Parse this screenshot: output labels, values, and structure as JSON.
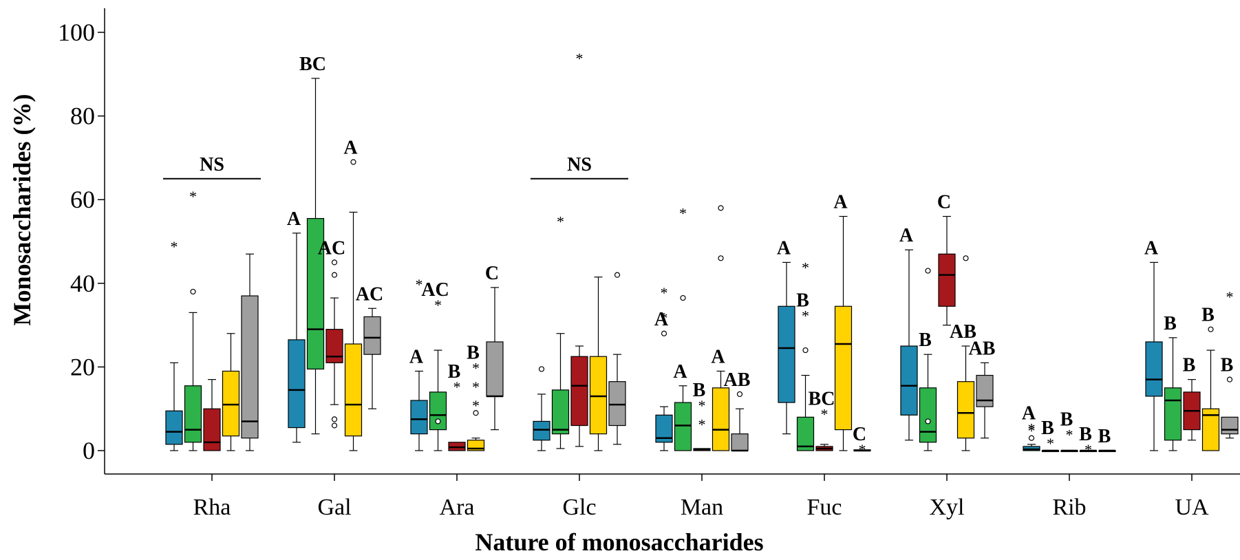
{
  "chart_data": {
    "type": "boxplot",
    "xlabel": "Nature of monosaccharides",
    "ylabel": "Monosaccharides (%)",
    "ylim": [
      -5,
      105
    ],
    "yticks": [
      0,
      20,
      40,
      60,
      80,
      100
    ],
    "categories": [
      "Rha",
      "Gal",
      "Ara",
      "Glc",
      "Man",
      "Fuc",
      "Xyl",
      "Rib",
      "UA"
    ],
    "series_colors": [
      "#1f88b0",
      "#2db34a",
      "#a7181d",
      "#ffd200",
      "#9e9e9e"
    ],
    "groups": [
      {
        "category": "Rha",
        "boxes": [
          {
            "min": 0,
            "q1": 1.5,
            "median": 4.5,
            "q3": 9.5,
            "max": 21,
            "outliers": [
              {
                "value": 49,
                "symbol": "*"
              }
            ]
          },
          {
            "min": 0,
            "q1": 2,
            "median": 5,
            "q3": 15.5,
            "max": 33,
            "outliers": [
              {
                "value": 38,
                "symbol": "o"
              },
              {
                "value": 61,
                "symbol": "*"
              }
            ]
          },
          {
            "min": 0,
            "q1": 0,
            "median": 2,
            "q3": 10,
            "max": 17,
            "outliers": []
          },
          {
            "min": 0,
            "q1": 3.5,
            "median": 11,
            "q3": 19,
            "max": 28,
            "outliers": []
          },
          {
            "min": 0,
            "q1": 3,
            "median": 7,
            "q3": 37,
            "max": 47,
            "outliers": []
          }
        ],
        "letters": [],
        "bracket_label": "NS"
      },
      {
        "category": "Gal",
        "boxes": [
          {
            "min": 2,
            "q1": 5.5,
            "median": 14.5,
            "q3": 26.5,
            "max": 52,
            "outliers": []
          },
          {
            "min": 4,
            "q1": 19.5,
            "median": 29,
            "q3": 55.5,
            "max": 89,
            "outliers": []
          },
          {
            "min": 11,
            "q1": 21,
            "median": 22.5,
            "q3": 29,
            "max": 36.5,
            "outliers": [
              {
                "value": 45,
                "symbol": "o"
              },
              {
                "value": 42,
                "symbol": "o"
              },
              {
                "value": 7.5,
                "symbol": "o"
              },
              {
                "value": 6,
                "symbol": "o"
              }
            ]
          },
          {
            "min": 0,
            "q1": 3.5,
            "median": 11,
            "q3": 25.5,
            "max": 57,
            "outliers": [
              {
                "value": 69,
                "symbol": "o"
              }
            ]
          },
          {
            "min": 10,
            "q1": 23,
            "median": 27,
            "q3": 32,
            "max": 34,
            "outliers": []
          }
        ],
        "letters": [
          "A",
          "BC",
          "AC",
          "A",
          "AC"
        ]
      },
      {
        "category": "Ara",
        "boxes": [
          {
            "min": 0,
            "q1": 4,
            "median": 7.5,
            "q3": 12,
            "max": 19,
            "outliers": [
              {
                "value": 40,
                "symbol": "*"
              }
            ]
          },
          {
            "min": 0,
            "q1": 5,
            "median": 8.5,
            "q3": 14,
            "max": 24,
            "outliers": [
              {
                "value": 35,
                "symbol": "*"
              },
              {
                "value": 7,
                "symbol": "o"
              }
            ]
          },
          {
            "min": 0,
            "q1": 0,
            "median": 0.8,
            "q3": 2,
            "max": 2,
            "outliers": [
              {
                "value": 15.5,
                "symbol": "*"
              }
            ]
          },
          {
            "min": 0,
            "q1": 0,
            "median": 0.5,
            "q3": 2.5,
            "max": 3,
            "outliers": [
              {
                "value": 20,
                "symbol": "*"
              },
              {
                "value": 15.5,
                "symbol": "*"
              },
              {
                "value": 11,
                "symbol": "*"
              },
              {
                "value": 9,
                "symbol": "o"
              }
            ]
          },
          {
            "min": 5,
            "q1": 13,
            "median": 13,
            "q3": 26,
            "max": 39,
            "outliers": []
          }
        ],
        "letters": [
          "A",
          "AC",
          "B",
          "B",
          "C"
        ]
      },
      {
        "category": "Glc",
        "boxes": [
          {
            "min": 0,
            "q1": 2.5,
            "median": 5,
            "q3": 7,
            "max": 13.5,
            "outliers": [
              {
                "value": 19.5,
                "symbol": "o"
              }
            ]
          },
          {
            "min": 0.5,
            "q1": 4,
            "median": 5,
            "q3": 14.5,
            "max": 28,
            "outliers": [
              {
                "value": 55,
                "symbol": "*"
              }
            ]
          },
          {
            "min": 1,
            "q1": 6,
            "median": 15.5,
            "q3": 22.5,
            "max": 25,
            "outliers": [
              {
                "value": 94,
                "symbol": "*"
              }
            ]
          },
          {
            "min": 0,
            "q1": 4,
            "median": 13,
            "q3": 22.5,
            "max": 41.5,
            "outliers": []
          },
          {
            "min": 1.5,
            "q1": 6,
            "median": 11,
            "q3": 16.5,
            "max": 23,
            "outliers": [
              {
                "value": 42,
                "symbol": "o"
              }
            ]
          }
        ],
        "letters": [],
        "bracket_label": "NS"
      },
      {
        "category": "Man",
        "boxes": [
          {
            "min": 0,
            "q1": 2,
            "median": 3,
            "q3": 8.5,
            "max": 10.5,
            "outliers": [
              {
                "value": 38,
                "symbol": "*"
              },
              {
                "value": 32,
                "symbol": "*"
              },
              {
                "value": 28,
                "symbol": "o"
              }
            ]
          },
          {
            "min": 0,
            "q1": 0,
            "median": 6,
            "q3": 11.5,
            "max": 15.5,
            "outliers": [
              {
                "value": 57,
                "symbol": "*"
              },
              {
                "value": 36.5,
                "symbol": "o"
              }
            ]
          },
          {
            "min": 0,
            "q1": 0,
            "median": 0.3,
            "q3": 0.5,
            "max": 0.5,
            "outliers": [
              {
                "value": 11,
                "symbol": "*"
              },
              {
                "value": 6.5,
                "symbol": "*"
              }
            ]
          },
          {
            "min": 0,
            "q1": 0,
            "median": 5,
            "q3": 15,
            "max": 19,
            "outliers": [
              {
                "value": 58,
                "symbol": "o"
              },
              {
                "value": 46,
                "symbol": "o"
              }
            ]
          },
          {
            "min": 0,
            "q1": 0,
            "median": 0,
            "q3": 4,
            "max": 10,
            "outliers": [
              {
                "value": 13.5,
                "symbol": "o"
              }
            ]
          }
        ],
        "letters": [
          "A",
          "A",
          "B",
          "A",
          "AB"
        ]
      },
      {
        "category": "Fuc",
        "boxes": [
          {
            "min": 4,
            "q1": 11.5,
            "median": 24.5,
            "q3": 34.5,
            "max": 45,
            "outliers": []
          },
          {
            "min": 0,
            "q1": 0,
            "median": 1,
            "q3": 8,
            "max": 18,
            "outliers": [
              {
                "value": 44,
                "symbol": "*"
              },
              {
                "value": 32.5,
                "symbol": "*"
              },
              {
                "value": 24,
                "symbol": "o"
              }
            ]
          },
          {
            "min": 0,
            "q1": 0,
            "median": 0.5,
            "q3": 1,
            "max": 1.5,
            "outliers": [
              {
                "value": 9,
                "symbol": "*"
              }
            ]
          },
          {
            "min": 0,
            "q1": 5,
            "median": 25.5,
            "q3": 34.5,
            "max": 56,
            "outliers": []
          },
          {
            "min": 0,
            "q1": 0,
            "median": 0,
            "q3": 0.2,
            "max": 0.2,
            "outliers": [
              {
                "value": 0.5,
                "symbol": "*"
              }
            ]
          }
        ],
        "letters": [
          "A",
          "B",
          "BC",
          "A",
          "C"
        ]
      },
      {
        "category": "Xyl",
        "boxes": [
          {
            "min": 2.5,
            "q1": 8.5,
            "median": 15.5,
            "q3": 25,
            "max": 48,
            "outliers": []
          },
          {
            "min": 0,
            "q1": 2,
            "median": 4.5,
            "q3": 15,
            "max": 23,
            "outliers": [
              {
                "value": 43,
                "symbol": "o"
              },
              {
                "value": 7,
                "symbol": "o"
              }
            ]
          },
          {
            "min": 30,
            "q1": 34.5,
            "median": 42,
            "q3": 47,
            "max": 56,
            "outliers": []
          },
          {
            "min": 0,
            "q1": 3,
            "median": 9,
            "q3": 16.5,
            "max": 25,
            "outliers": [
              {
                "value": 46,
                "symbol": "o"
              }
            ]
          },
          {
            "min": 3,
            "q1": 10.5,
            "median": 12,
            "q3": 18,
            "max": 21,
            "outliers": []
          }
        ],
        "letters": [
          "A",
          "B",
          "C",
          "AB",
          "AB"
        ]
      },
      {
        "category": "Rib",
        "boxes": [
          {
            "min": 0,
            "q1": 0,
            "median": 0.3,
            "q3": 1,
            "max": 1.5,
            "outliers": [
              {
                "value": 5.5,
                "symbol": "*"
              },
              {
                "value": 5,
                "symbol": "*"
              },
              {
                "value": 3,
                "symbol": "o"
              }
            ]
          },
          {
            "min": 0,
            "q1": 0,
            "median": 0,
            "q3": 0,
            "max": 0,
            "outliers": [
              {
                "value": 2,
                "symbol": "*"
              }
            ]
          },
          {
            "min": 0,
            "q1": 0,
            "median": 0,
            "q3": 0,
            "max": 0,
            "outliers": [
              {
                "value": 4,
                "symbol": "*"
              }
            ]
          },
          {
            "min": 0,
            "q1": 0,
            "median": 0,
            "q3": 0,
            "max": 0,
            "outliers": [
              {
                "value": 0.5,
                "symbol": "*"
              }
            ]
          },
          {
            "min": 0,
            "q1": 0,
            "median": 0,
            "q3": 0,
            "max": 0,
            "outliers": []
          }
        ],
        "letters": [
          "A",
          "B",
          "B",
          "B",
          "B"
        ]
      },
      {
        "category": "UA",
        "boxes": [
          {
            "min": 0,
            "q1": 13,
            "median": 17,
            "q3": 26,
            "max": 45,
            "outliers": []
          },
          {
            "min": 0,
            "q1": 2.5,
            "median": 12,
            "q3": 15,
            "max": 27,
            "outliers": []
          },
          {
            "min": 2.5,
            "q1": 5,
            "median": 9.5,
            "q3": 14,
            "max": 17,
            "outliers": []
          },
          {
            "min": 0,
            "q1": 0,
            "median": 8.5,
            "q3": 10,
            "max": 24,
            "outliers": [
              {
                "value": 29,
                "symbol": "o"
              }
            ]
          },
          {
            "min": 3,
            "q1": 4,
            "median": 5,
            "q3": 8,
            "max": 8,
            "outliers": [
              {
                "value": 37,
                "symbol": "*"
              },
              {
                "value": 17,
                "symbol": "o"
              }
            ]
          }
        ],
        "letters": [
          "A",
          "B",
          "B",
          "B",
          "B"
        ]
      }
    ]
  }
}
